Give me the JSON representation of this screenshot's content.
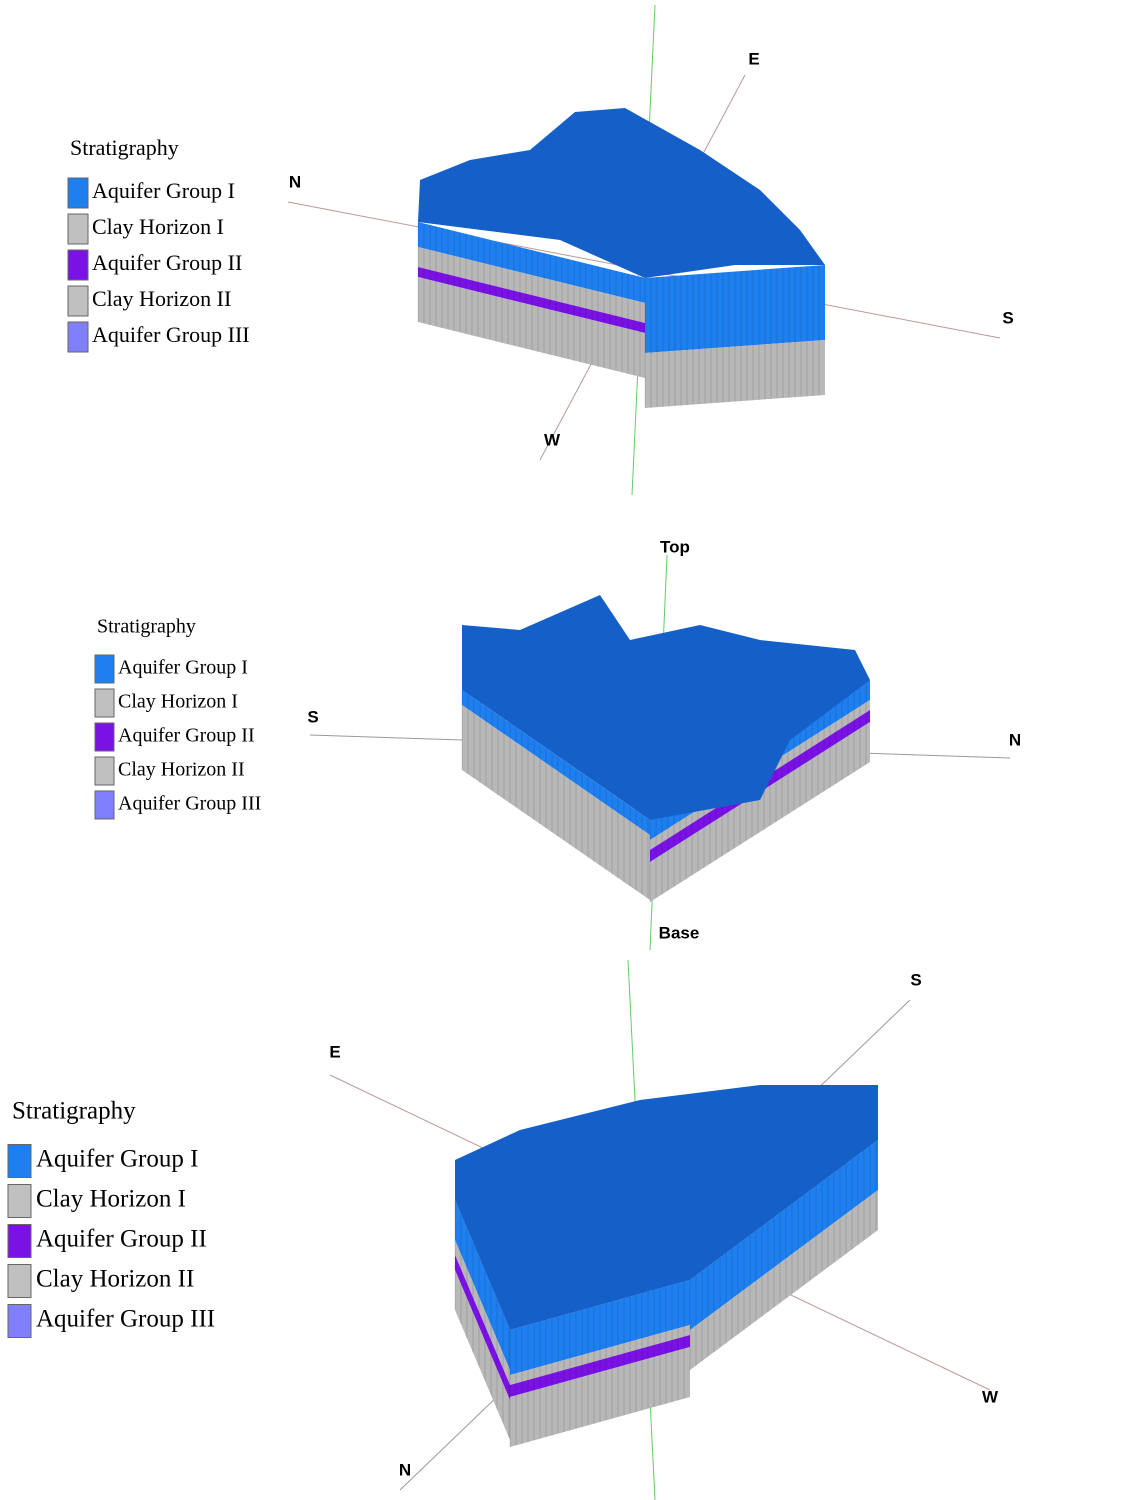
{
  "panels": [
    {
      "legend": {
        "title": "Stratigraphy",
        "items": [
          {
            "label": "Aquifer Group I",
            "color": "#1e7ff0"
          },
          {
            "label": "Clay Horizon I",
            "color": "#c0c0c0"
          },
          {
            "label": "Aquifer Group II",
            "color": "#7a12e6"
          },
          {
            "label": "Clay Horizon II",
            "color": "#c0c0c0"
          },
          {
            "label": "Aquifer Group III",
            "color": "#8080ff"
          }
        ]
      },
      "axis_labels": [
        "N",
        "E",
        "S",
        "W"
      ]
    },
    {
      "legend": {
        "title": "Stratigraphy",
        "items": [
          {
            "label": "Aquifer Group I",
            "color": "#1e7ff0"
          },
          {
            "label": "Clay Horizon I",
            "color": "#c0c0c0"
          },
          {
            "label": "Aquifer Group II",
            "color": "#7a12e6"
          },
          {
            "label": "Clay Horizon II",
            "color": "#c0c0c0"
          },
          {
            "label": "Aquifer Group III",
            "color": "#8080ff"
          }
        ]
      },
      "axis_labels": [
        "Top",
        "S",
        "N",
        "Base"
      ]
    },
    {
      "legend": {
        "title": "Stratigraphy",
        "items": [
          {
            "label": "Aquifer Group I",
            "color": "#1e7ff0"
          },
          {
            "label": "Clay Horizon I",
            "color": "#c0c0c0"
          },
          {
            "label": "Aquifer Group II",
            "color": "#7a12e6"
          },
          {
            "label": "Clay Horizon II",
            "color": "#c0c0c0"
          },
          {
            "label": "Aquifer Group III",
            "color": "#8080ff"
          }
        ]
      },
      "axis_labels": [
        "E",
        "S",
        "W",
        "N"
      ]
    }
  ]
}
